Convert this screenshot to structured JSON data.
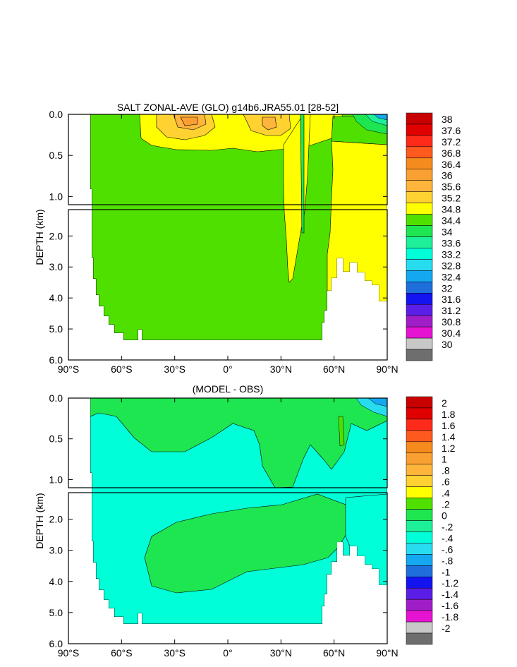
{
  "chart_data": [
    {
      "type": "heatmap",
      "title": "SALT ZONAL-AVE (GLO) g14b6.JRA55.01 [28-52]",
      "xlabel": "",
      "ylabel": "DEPTH (km)",
      "x_range": [
        -90,
        90
      ],
      "y_range": [
        0,
        6
      ],
      "x_ticks": [
        "90°S",
        "60°S",
        "30°S",
        "0°",
        "30°N",
        "60°N",
        "90°N"
      ],
      "y_ticks_upper": [
        "0.0",
        "0.5",
        "1.0"
      ],
      "y_ticks_lower": [
        "2.0",
        "3.0",
        "4.0",
        "5.0",
        "6.0"
      ],
      "colorbar_labels": [
        "38",
        "37.6",
        "37.2",
        "36.8",
        "36.4",
        "36",
        "35.6",
        "35.2",
        "34.8",
        "34.4",
        "34",
        "33.6",
        "33.2",
        "32.8",
        "32.4",
        "32",
        "31.6",
        "31.2",
        "30.8",
        "30.4",
        "30"
      ],
      "colorbar_colors": [
        "#c80000",
        "#e00000",
        "#ff2a1a",
        "#ff5a1e",
        "#f58a1e",
        "#faa032",
        "#ffb43c",
        "#ffd232",
        "#ffff00",
        "#50e000",
        "#1ee650",
        "#1ef09a",
        "#00ffd8",
        "#28dcf0",
        "#14a8f0",
        "#1e6edc",
        "#1414f0",
        "#5a1ee6",
        "#a01ec8",
        "#e614d2",
        "#c8c8c8",
        "#6e6e6e"
      ],
      "regions": [
        {
          "range": "34.4-34.8",
          "area": "bulk of ocean from 77°S to about 35°N at all depths"
        },
        {
          "range": "34.8-35.2",
          "area": "Atlantic-influenced 35°N-90°N deep water and subtropical upper layers"
        },
        {
          "range": "35.2-36.4",
          "area": "subtropical surface maxima near 25°S and 15°N"
        },
        {
          "range": "<34.4",
          "area": "Arctic surface layer near 85°N"
        }
      ]
    },
    {
      "type": "heatmap",
      "title": "(MODEL - OBS)",
      "xlabel": "",
      "ylabel": "DEPTH (km)",
      "x_range": [
        -90,
        90
      ],
      "y_range": [
        0,
        6
      ],
      "x_ticks": [
        "90°S",
        "60°S",
        "30°S",
        "0°",
        "30°N",
        "60°N",
        "90°N"
      ],
      "y_ticks_upper": [
        "0.0",
        "0.5",
        "1.0"
      ],
      "y_ticks_lower": [
        "2.0",
        "3.0",
        "4.0",
        "5.0",
        "6.0"
      ],
      "colorbar_labels": [
        "2",
        "1.8",
        "1.6",
        "1.4",
        "1.2",
        "1",
        ".8",
        ".6",
        ".4",
        ".2",
        "0",
        "-.2",
        "-.4",
        "-.6",
        "-.8",
        "-1",
        "-1.2",
        "-1.4",
        "-1.6",
        "-1.8",
        "-2"
      ],
      "colorbar_colors": [
        "#c80000",
        "#e00000",
        "#ff2a1a",
        "#ff5a1e",
        "#f58a1e",
        "#faa032",
        "#ffb43c",
        "#ffd232",
        "#ffff00",
        "#50e000",
        "#1ee650",
        "#1ef09a",
        "#00ffd8",
        "#28dcf0",
        "#14a8f0",
        "#1e6edc",
        "#1414f0",
        "#5a1ee6",
        "#a01ec8",
        "#e614d2",
        "#c8c8c8",
        "#6e6e6e"
      ],
      "regions": [
        {
          "range": "0 to .2",
          "area": "upper ocean and mid-depth band 30°S-50°N"
        },
        {
          "range": "-.2 to 0",
          "area": "Southern Ocean and deep/abyssal water"
        },
        {
          "range": "< -.4",
          "area": "Arctic surface layer near 85°N"
        }
      ]
    }
  ]
}
